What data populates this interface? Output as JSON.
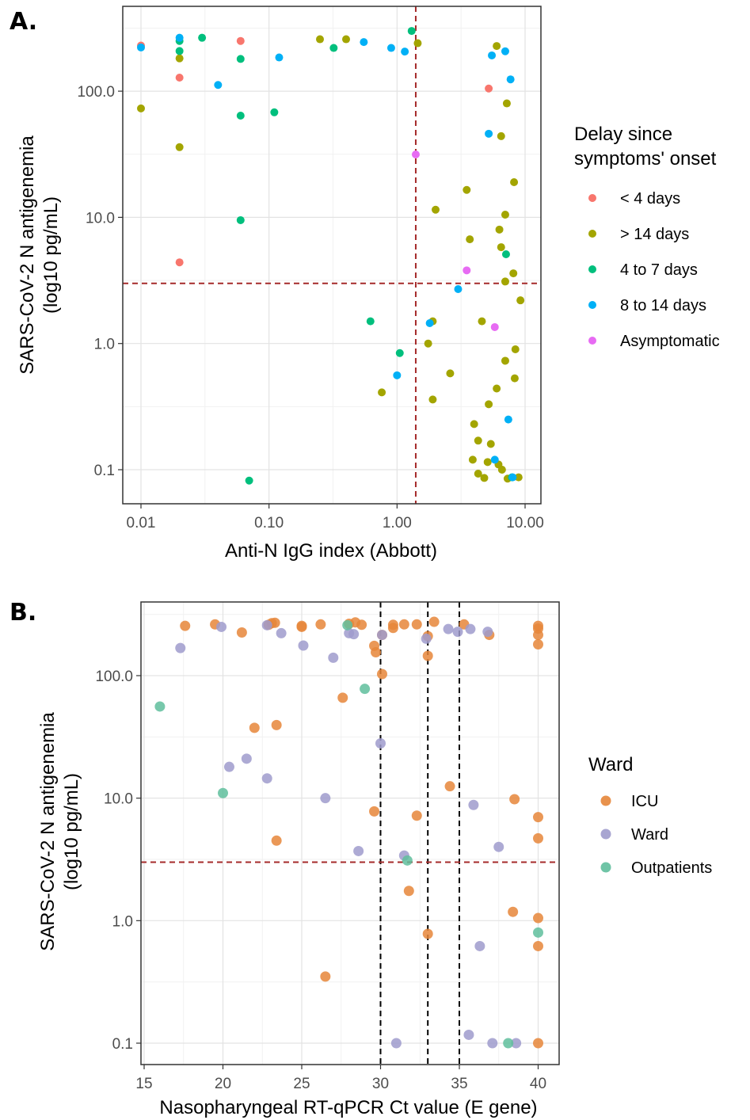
{
  "figure": {
    "panel_a_letter": "A.",
    "panel_b_letter": "B."
  },
  "chart_data": [
    {
      "type": "scatter",
      "panel": "A.",
      "xlabel": "Anti-N IgG index (Abbott)",
      "ylabel_line1": "SARS-CoV-2 N antigenemia",
      "ylabel_line2": "(log10 pg/mL)",
      "x_scale": "log10",
      "y_scale": "log10",
      "xlim": [
        0.01,
        10
      ],
      "ylim": [
        0.08,
        300
      ],
      "x_ticks": [
        0.01,
        0.1,
        1,
        10
      ],
      "x_tick_labels": [
        "0.01",
        "0.10",
        "1.00",
        "10.00"
      ],
      "y_ticks": [
        0.1,
        1,
        10,
        100
      ],
      "y_tick_labels": [
        "0.1",
        "1.0",
        "10.0",
        "100.0"
      ],
      "grid": true,
      "reference_lines": {
        "vline_x": 1.4,
        "hline_y": 3.0,
        "color": "#a52a2a",
        "style": "dashed"
      },
      "legend": {
        "title_line1": "Delay since",
        "title_line2": "symptoms' onset",
        "placement": "right",
        "entries": [
          {
            "label": "< 4 days",
            "color": "#f8766d"
          },
          {
            "label": "> 14 days",
            "color": "#a3a500"
          },
          {
            "label": "4 to 7 days",
            "color": "#00bf7d"
          },
          {
            "label": "8 to 14 days",
            "color": "#00b0f6"
          },
          {
            "label": "Asymptomatic",
            "color": "#e76bf3"
          }
        ]
      },
      "series": [
        {
          "name": "< 4 days",
          "points": [
            [
              0.01,
              230
            ],
            [
              0.02,
              128
            ],
            [
              0.02,
              4.4
            ],
            [
              0.06,
              250
            ],
            [
              5.2,
              105
            ]
          ]
        },
        {
          "name": "> 14 days",
          "points": [
            [
              0.01,
              73
            ],
            [
              0.02,
              182
            ],
            [
              0.02,
              36
            ],
            [
              0.25,
              258
            ],
            [
              0.4,
              258
            ],
            [
              1.45,
              240
            ],
            [
              6,
              228
            ],
            [
              7.2,
              80
            ],
            [
              6.5,
              44
            ],
            [
              8.2,
              19
            ],
            [
              3.5,
              16.5
            ],
            [
              2,
              11.5
            ],
            [
              7,
              10.5
            ],
            [
              3.7,
              6.7
            ],
            [
              6.3,
              8
            ],
            [
              6.5,
              5.8
            ],
            [
              7,
              3.1
            ],
            [
              8.1,
              3.6
            ],
            [
              9.2,
              2.2
            ],
            [
              1.9,
              1.5
            ],
            [
              4.6,
              1.5
            ],
            [
              8.4,
              0.9
            ],
            [
              1.75,
              1
            ],
            [
              7,
              0.73
            ],
            [
              2.6,
              0.58
            ],
            [
              8.3,
              0.53
            ],
            [
              0.76,
              0.41
            ],
            [
              6,
              0.44
            ],
            [
              1.9,
              0.36
            ],
            [
              5.2,
              0.33
            ],
            [
              4,
              0.23
            ],
            [
              4.3,
              0.17
            ],
            [
              5.4,
              0.16
            ],
            [
              3.9,
              0.12
            ],
            [
              5.1,
              0.115
            ],
            [
              6.2,
              0.11
            ],
            [
              6.6,
              0.1
            ],
            [
              4.3,
              0.093
            ],
            [
              4.8,
              0.086
            ],
            [
              7.3,
              0.085
            ],
            [
              8.9,
              0.087
            ]
          ]
        },
        {
          "name": "4 to 7 days",
          "points": [
            [
              0.02,
              250
            ],
            [
              0.02,
              208
            ],
            [
              0.03,
              265
            ],
            [
              0.06,
              180
            ],
            [
              0.32,
              220
            ],
            [
              1.3,
              300
            ],
            [
              0.06,
              64
            ],
            [
              0.11,
              68
            ],
            [
              0.06,
              9.5
            ],
            [
              0.62,
              1.5
            ],
            [
              1.05,
              0.84
            ],
            [
              0.07,
              0.082
            ],
            [
              7.1,
              5.1
            ],
            [
              7.9,
              0.087
            ]
          ]
        },
        {
          "name": "8 to 14 days",
          "points": [
            [
              0.01,
              222
            ],
            [
              0.02,
              265
            ],
            [
              0.04,
              112
            ],
            [
              0.12,
              185
            ],
            [
              0.55,
              245
            ],
            [
              0.9,
              220
            ],
            [
              1.15,
              206
            ],
            [
              5.5,
              192
            ],
            [
              7,
              207
            ],
            [
              7.7,
              124
            ],
            [
              5.2,
              46
            ],
            [
              3,
              2.7
            ],
            [
              1.8,
              1.45
            ],
            [
              1,
              0.56
            ],
            [
              7.4,
              0.25
            ],
            [
              5.8,
              0.12
            ],
            [
              8,
              0.087
            ]
          ]
        },
        {
          "name": "Asymptomatic",
          "points": [
            [
              1.4,
              31.5
            ],
            [
              3.5,
              3.8
            ],
            [
              5.8,
              1.35
            ]
          ]
        }
      ]
    },
    {
      "type": "scatter",
      "panel": "B.",
      "xlabel": "Nasopharyngeal RT-qPCR Ct value (E gene)",
      "ylabel_line1": "SARS-CoV-2 N antigenemia",
      "ylabel_line2": "(log10 pg/mL)",
      "x_scale": "linear",
      "y_scale": "log10",
      "xlim": [
        14.25,
        41.35
      ],
      "ylim": [
        0.08,
        320
      ],
      "x_ticks": [
        15,
        20,
        25,
        30,
        35,
        40
      ],
      "x_tick_labels": [
        "15",
        "20",
        "25",
        "30",
        "35",
        "40"
      ],
      "y_ticks": [
        0.1,
        1,
        10,
        100
      ],
      "y_tick_labels": [
        "0.1",
        "1.0",
        "10.0",
        "100.0"
      ],
      "grid": true,
      "reference_lines": {
        "vlines_x": [
          30,
          33,
          35
        ],
        "vline_color": "#000000",
        "hline_y": 3.0,
        "hline_color": "#a52a2a",
        "style": "dashed"
      },
      "legend": {
        "title": "Ward",
        "placement": "right",
        "entries": [
          {
            "label": "ICU",
            "color": "#e6863a"
          },
          {
            "label": "Ward",
            "color": "#9f9bcc"
          },
          {
            "label": "Outpatients",
            "color": "#5fbe9c"
          }
        ]
      },
      "series": [
        {
          "name": "ICU",
          "points": [
            [
              17.6,
              255
            ],
            [
              19.5,
              262
            ],
            [
              21.2,
              225
            ],
            [
              22.9,
              260
            ],
            [
              23.1,
              268
            ],
            [
              23.3,
              270
            ],
            [
              25,
              255
            ],
            [
              25,
              250
            ],
            [
              26.2,
              262
            ],
            [
              28,
              265
            ],
            [
              28.4,
              272
            ],
            [
              28.8,
              260
            ],
            [
              29.6,
              175
            ],
            [
              29.7,
              155
            ],
            [
              30.1,
              215
            ],
            [
              30.8,
              260
            ],
            [
              30.8,
              245
            ],
            [
              31.5,
              262
            ],
            [
              32.3,
              262
            ],
            [
              33,
              210
            ],
            [
              33,
              145
            ],
            [
              33.4,
              275
            ],
            [
              35.3,
              262
            ],
            [
              36.9,
              215
            ],
            [
              40,
              255
            ],
            [
              40,
              242
            ],
            [
              40,
              215
            ],
            [
              40,
              180
            ],
            [
              27.6,
              66
            ],
            [
              22,
              37.5
            ],
            [
              23.4,
              39.5
            ],
            [
              30.1,
              103
            ],
            [
              23.4,
              4.5
            ],
            [
              29.6,
              7.8
            ],
            [
              32.3,
              7.2
            ],
            [
              34.4,
              12.5
            ],
            [
              38.5,
              9.8
            ],
            [
              40,
              7
            ],
            [
              40,
              4.7
            ],
            [
              31.8,
              1.75
            ],
            [
              38.4,
              1.18
            ],
            [
              40,
              1.05
            ],
            [
              40,
              0.62
            ],
            [
              33,
              0.78
            ],
            [
              26.5,
              0.35
            ],
            [
              40,
              0.1
            ]
          ]
        },
        {
          "name": "Ward",
          "points": [
            [
              17.3,
              168
            ],
            [
              19.9,
              250
            ],
            [
              22.8,
              258
            ],
            [
              23.7,
              222
            ],
            [
              25.1,
              176
            ],
            [
              27,
              140
            ],
            [
              28,
              222
            ],
            [
              28.3,
              218
            ],
            [
              30.1,
              215
            ],
            [
              32.9,
              200
            ],
            [
              34.3,
              240
            ],
            [
              34.9,
              228
            ],
            [
              35.7,
              240
            ],
            [
              36.8,
              228
            ],
            [
              30,
              28
            ],
            [
              20.4,
              18
            ],
            [
              21.5,
              21
            ],
            [
              22.8,
              14.5
            ],
            [
              26.5,
              10
            ],
            [
              35.9,
              8.8
            ],
            [
              28.6,
              3.7
            ],
            [
              31.5,
              3.4
            ],
            [
              37.5,
              4
            ],
            [
              36.3,
              0.62
            ],
            [
              31,
              0.1
            ],
            [
              35.6,
              0.117
            ],
            [
              37.1,
              0.1
            ],
            [
              38.6,
              0.1
            ]
          ]
        },
        {
          "name": "Outpatients",
          "points": [
            [
              27.9,
              258
            ],
            [
              29,
              78
            ],
            [
              16,
              56
            ],
            [
              20,
              11
            ],
            [
              31.7,
              3.1
            ],
            [
              40,
              0.8
            ],
            [
              38.1,
              0.1
            ]
          ]
        }
      ]
    }
  ]
}
